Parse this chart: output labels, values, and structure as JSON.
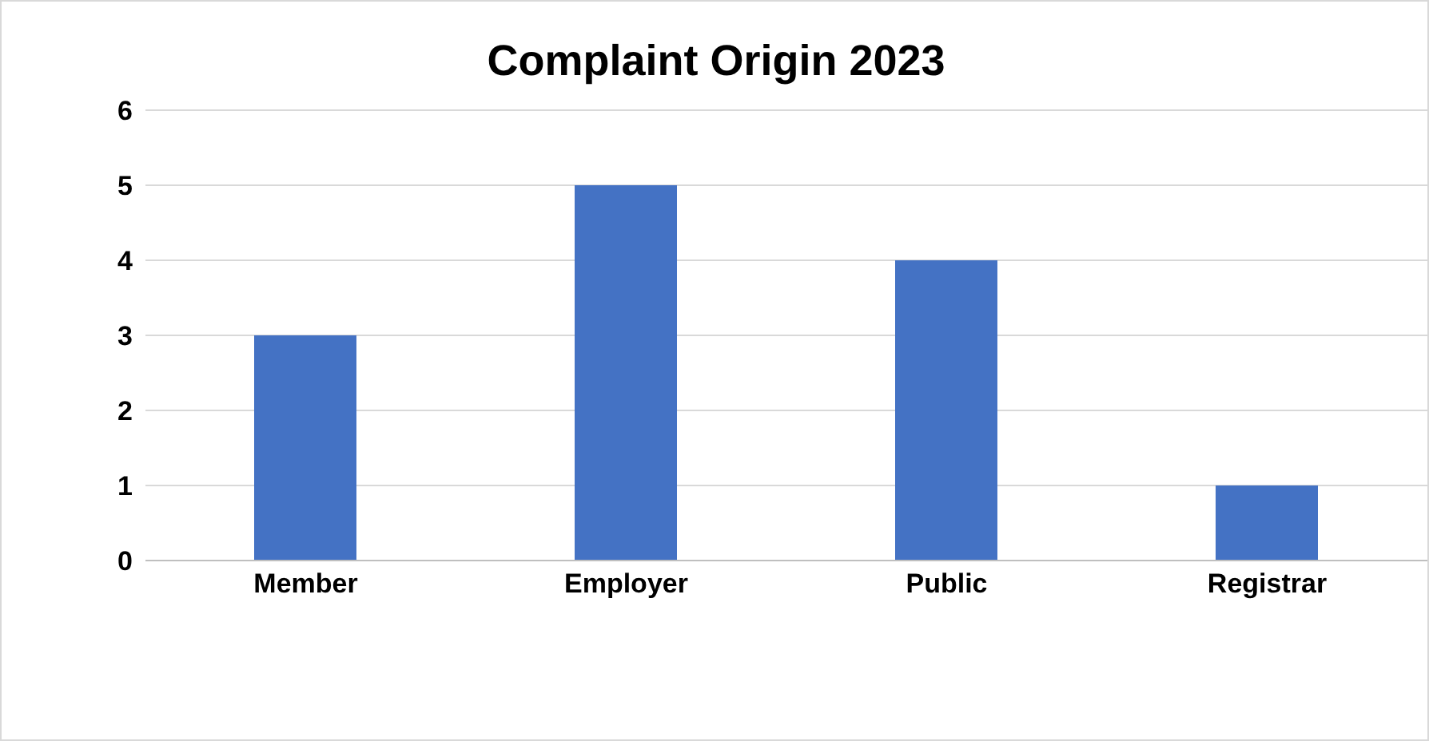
{
  "chart_data": {
    "type": "bar",
    "title": "Complaint Origin 2023",
    "categories": [
      "Member",
      "Employer",
      "Public",
      "Registrar"
    ],
    "values": [
      3,
      5,
      4,
      1
    ],
    "color": "#4472c4",
    "ylim": [
      0,
      6
    ],
    "yticks": [
      0,
      1,
      2,
      3,
      4,
      5,
      6
    ],
    "grid": "y",
    "legend": false
  }
}
